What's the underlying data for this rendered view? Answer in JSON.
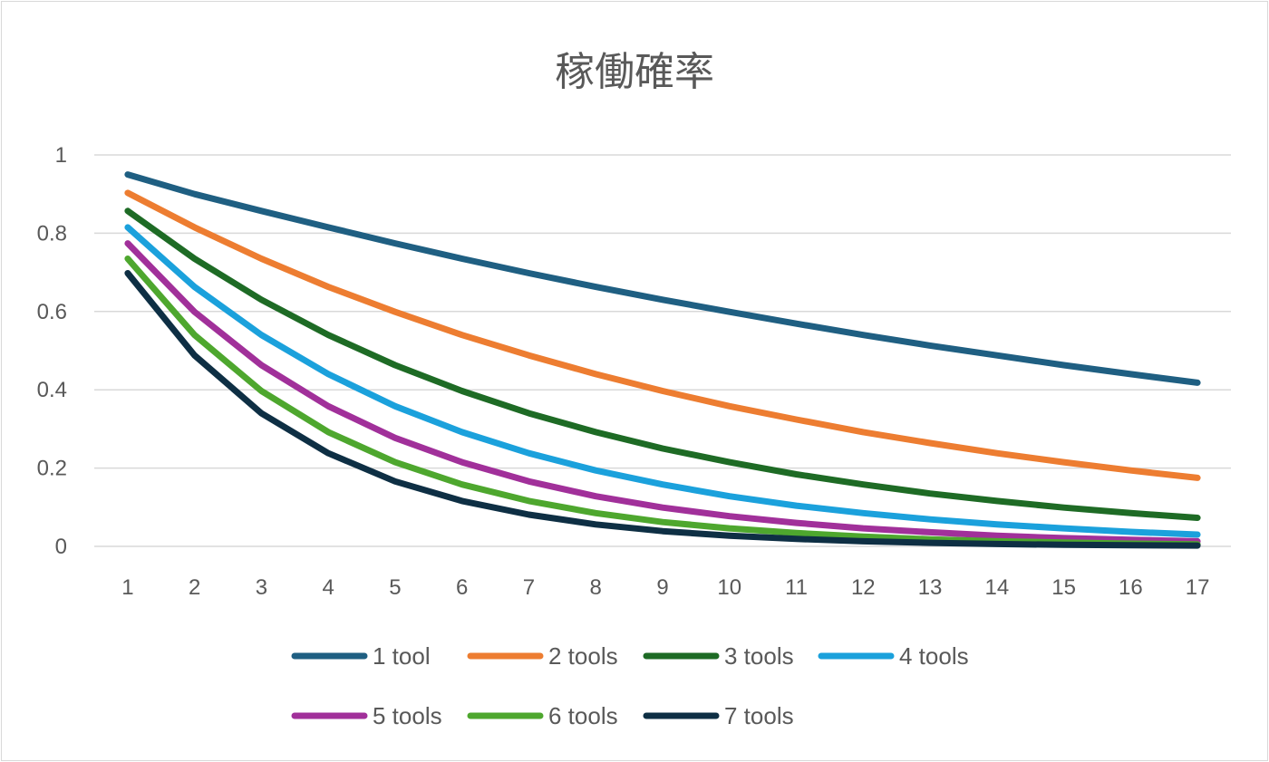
{
  "chart_data": {
    "type": "line",
    "title": "稼働確率",
    "xlabel": "",
    "ylabel": "",
    "categories": [
      "1",
      "2",
      "3",
      "4",
      "5",
      "6",
      "7",
      "8",
      "9",
      "10",
      "11",
      "12",
      "13",
      "14",
      "15",
      "16",
      "17"
    ],
    "y_ticks": [
      "0",
      "0.2",
      "0.4",
      "0.6",
      "0.8",
      "1"
    ],
    "ylim": [
      0,
      1
    ],
    "grid": true,
    "legend_position": "bottom",
    "series": [
      {
        "name": "1 tool",
        "color": "#1f5f82",
        "values": [
          0.95,
          0.9,
          0.857,
          0.815,
          0.774,
          0.735,
          0.698,
          0.663,
          0.63,
          0.599,
          0.569,
          0.54,
          0.513,
          0.488,
          0.463,
          0.44,
          0.418
        ]
      },
      {
        "name": "2 tools",
        "color": "#ed7d31",
        "values": [
          0.903,
          0.815,
          0.735,
          0.663,
          0.599,
          0.54,
          0.488,
          0.44,
          0.397,
          0.358,
          0.324,
          0.292,
          0.264,
          0.238,
          0.215,
          0.194,
          0.175
        ]
      },
      {
        "name": "3 tools",
        "color": "#1e6b25",
        "values": [
          0.857,
          0.735,
          0.63,
          0.54,
          0.463,
          0.397,
          0.34,
          0.292,
          0.25,
          0.215,
          0.184,
          0.158,
          0.135,
          0.116,
          0.099,
          0.085,
          0.073
        ]
      },
      {
        "name": "4 tools",
        "color": "#1ba1dc",
        "values": [
          0.815,
          0.663,
          0.54,
          0.44,
          0.358,
          0.292,
          0.238,
          0.194,
          0.158,
          0.128,
          0.104,
          0.085,
          0.069,
          0.056,
          0.046,
          0.037,
          0.03
        ]
      },
      {
        "name": "5 tools",
        "color": "#a1309a",
        "values": [
          0.774,
          0.599,
          0.463,
          0.358,
          0.277,
          0.215,
          0.166,
          0.128,
          0.099,
          0.077,
          0.06,
          0.046,
          0.036,
          0.027,
          0.021,
          0.017,
          0.013
        ]
      },
      {
        "name": "6 tools",
        "color": "#4ea72e",
        "values": [
          0.735,
          0.54,
          0.397,
          0.292,
          0.215,
          0.158,
          0.116,
          0.085,
          0.062,
          0.046,
          0.034,
          0.025,
          0.018,
          0.013,
          0.01,
          0.007,
          0.005
        ]
      },
      {
        "name": "7 tools",
        "color": "#0e2f44",
        "values": [
          0.698,
          0.488,
          0.34,
          0.238,
          0.166,
          0.116,
          0.081,
          0.056,
          0.039,
          0.027,
          0.019,
          0.013,
          0.009,
          0.006,
          0.004,
          0.003,
          0.002
        ]
      }
    ]
  }
}
